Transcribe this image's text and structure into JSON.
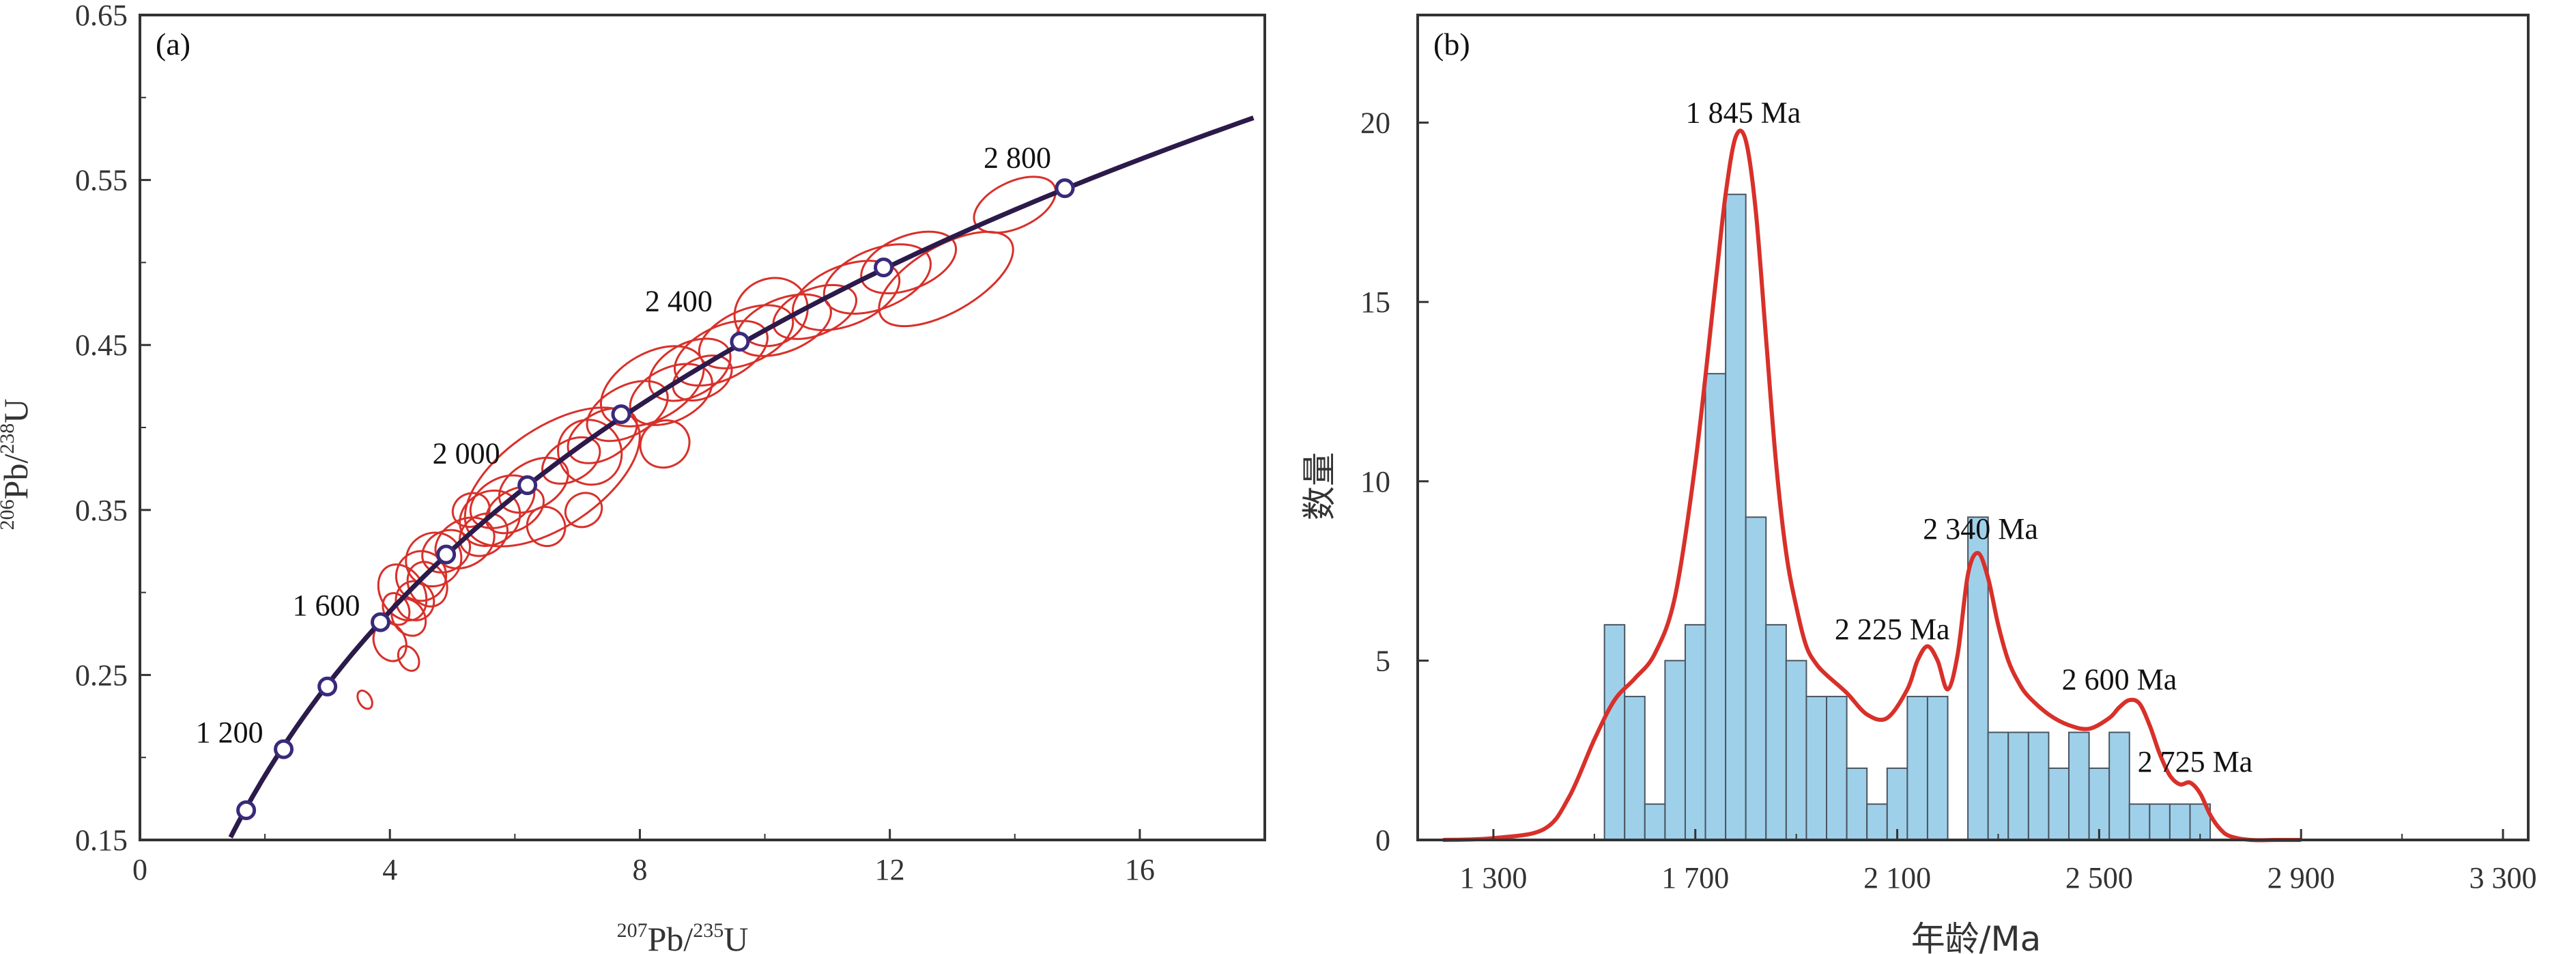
{
  "chart_data": [
    {
      "type": "scatter",
      "panel_label": "(a)",
      "xlabel_main": "Pb/",
      "xlabel_sup1": "207",
      "xlabel_sup2": "235",
      "xlabel_end": "U",
      "ylabel_main": "Pb/",
      "ylabel_sup1": "206",
      "ylabel_sup2": "238",
      "ylabel_end": "U",
      "xlim": [
        0,
        18
      ],
      "ylim": [
        0.15,
        0.65
      ],
      "x_ticks": [
        0,
        4,
        8,
        12,
        16
      ],
      "x_tick_labels": [
        "0",
        "4",
        "8",
        "12",
        "16"
      ],
      "y_ticks": [
        0.15,
        0.25,
        0.35,
        0.45,
        0.55,
        0.65
      ],
      "y_tick_labels": [
        "0.15",
        "0.25",
        "0.35",
        "0.45",
        "0.55",
        "0.65"
      ],
      "concordia_markers": [
        {
          "x": 1.7,
          "y": 0.168,
          "label": ""
        },
        {
          "x": 2.3,
          "y": 0.205,
          "label": "1 200"
        },
        {
          "x": 3.0,
          "y": 0.243,
          "label": ""
        },
        {
          "x": 3.85,
          "y": 0.282,
          "label": "1 600"
        },
        {
          "x": 4.9,
          "y": 0.323,
          "label": ""
        },
        {
          "x": 6.2,
          "y": 0.365,
          "label": "2 000"
        },
        {
          "x": 7.7,
          "y": 0.408,
          "label": ""
        },
        {
          "x": 9.6,
          "y": 0.452,
          "label": "2 400"
        },
        {
          "x": 11.9,
          "y": 0.497,
          "label": ""
        },
        {
          "x": 14.8,
          "y": 0.545,
          "label": "2 800"
        }
      ],
      "ellipses": [
        {
          "x": 4.2,
          "y": 0.3,
          "rx": 0.35,
          "ry": 0.018,
          "angle": 30
        },
        {
          "x": 4.5,
          "y": 0.31,
          "rx": 0.4,
          "ry": 0.015,
          "angle": 28
        },
        {
          "x": 4.4,
          "y": 0.295,
          "rx": 0.3,
          "ry": 0.012,
          "angle": 30
        },
        {
          "x": 4.7,
          "y": 0.32,
          "rx": 0.45,
          "ry": 0.016,
          "angle": 30
        },
        {
          "x": 4.1,
          "y": 0.29,
          "rx": 0.2,
          "ry": 0.01,
          "angle": 25
        },
        {
          "x": 4.3,
          "y": 0.285,
          "rx": 0.25,
          "ry": 0.012,
          "angle": 35
        },
        {
          "x": 4.6,
          "y": 0.305,
          "rx": 0.3,
          "ry": 0.014,
          "angle": 28
        },
        {
          "x": 4.9,
          "y": 0.325,
          "rx": 0.4,
          "ry": 0.012,
          "angle": 30
        },
        {
          "x": 5.2,
          "y": 0.33,
          "rx": 0.5,
          "ry": 0.014,
          "angle": 30
        },
        {
          "x": 5.6,
          "y": 0.345,
          "rx": 0.5,
          "ry": 0.016,
          "angle": 30
        },
        {
          "x": 5.5,
          "y": 0.335,
          "rx": 0.4,
          "ry": 0.012,
          "angle": 30
        },
        {
          "x": 5.8,
          "y": 0.355,
          "rx": 0.55,
          "ry": 0.014,
          "angle": 30
        },
        {
          "x": 6.0,
          "y": 0.35,
          "rx": 0.5,
          "ry": 0.012,
          "angle": 30
        },
        {
          "x": 6.3,
          "y": 0.365,
          "rx": 0.6,
          "ry": 0.014,
          "angle": 30
        },
        {
          "x": 6.6,
          "y": 0.37,
          "rx": 1.6,
          "ry": 0.03,
          "angle": 34
        },
        {
          "x": 6.9,
          "y": 0.38,
          "rx": 0.5,
          "ry": 0.012,
          "angle": 30
        },
        {
          "x": 7.4,
          "y": 0.395,
          "rx": 0.6,
          "ry": 0.014,
          "angle": 30
        },
        {
          "x": 7.8,
          "y": 0.41,
          "rx": 0.7,
          "ry": 0.015,
          "angle": 28
        },
        {
          "x": 8.2,
          "y": 0.425,
          "rx": 0.9,
          "ry": 0.02,
          "angle": 30
        },
        {
          "x": 8.5,
          "y": 0.42,
          "rx": 0.7,
          "ry": 0.016,
          "angle": 26
        },
        {
          "x": 8.8,
          "y": 0.435,
          "rx": 0.7,
          "ry": 0.016,
          "angle": 28
        },
        {
          "x": 9.3,
          "y": 0.445,
          "rx": 0.8,
          "ry": 0.016,
          "angle": 26
        },
        {
          "x": 9.7,
          "y": 0.455,
          "rx": 0.8,
          "ry": 0.016,
          "angle": 24
        },
        {
          "x": 10.3,
          "y": 0.462,
          "rx": 0.8,
          "ry": 0.016,
          "angle": 22
        },
        {
          "x": 10.8,
          "y": 0.47,
          "rx": 0.7,
          "ry": 0.014,
          "angle": 22
        },
        {
          "x": 11.3,
          "y": 0.48,
          "rx": 0.9,
          "ry": 0.018,
          "angle": 22
        },
        {
          "x": 11.8,
          "y": 0.49,
          "rx": 0.9,
          "ry": 0.018,
          "angle": 22
        },
        {
          "x": 12.3,
          "y": 0.5,
          "rx": 0.8,
          "ry": 0.016,
          "angle": 22
        },
        {
          "x": 12.9,
          "y": 0.49,
          "rx": 1.2,
          "ry": 0.02,
          "angle": 30
        },
        {
          "x": 14.0,
          "y": 0.535,
          "rx": 0.7,
          "ry": 0.014,
          "angle": 25
        },
        {
          "x": 4.0,
          "y": 0.27,
          "rx": 0.25,
          "ry": 0.012,
          "angle": 25
        },
        {
          "x": 4.3,
          "y": 0.26,
          "rx": 0.15,
          "ry": 0.008,
          "angle": 30
        },
        {
          "x": 3.6,
          "y": 0.235,
          "rx": 0.1,
          "ry": 0.006,
          "angle": 30
        },
        {
          "x": 7.1,
          "y": 0.35,
          "rx": 0.3,
          "ry": 0.01,
          "angle": 30
        },
        {
          "x": 7.2,
          "y": 0.385,
          "rx": 0.5,
          "ry": 0.02,
          "angle": 35
        },
        {
          "x": 8.4,
          "y": 0.39,
          "rx": 0.4,
          "ry": 0.014,
          "angle": 30
        },
        {
          "x": 5.3,
          "y": 0.35,
          "rx": 0.3,
          "ry": 0.01,
          "angle": 25
        },
        {
          "x": 10.1,
          "y": 0.47,
          "rx": 0.6,
          "ry": 0.02,
          "angle": 28
        },
        {
          "x": 6.5,
          "y": 0.34,
          "rx": 0.3,
          "ry": 0.012,
          "angle": 30
        },
        {
          "x": 9.0,
          "y": 0.43,
          "rx": 0.5,
          "ry": 0.012,
          "angle": 26
        }
      ]
    },
    {
      "type": "bar",
      "panel_label": "(b)",
      "xlabel": "年龄/Ma",
      "ylabel": "数量",
      "xlim": [
        1150,
        3350
      ],
      "ylim": [
        0,
        23
      ],
      "x_ticks": [
        1300,
        1700,
        2100,
        2500,
        2900,
        3300
      ],
      "x_tick_labels": [
        "1 300",
        "1 700",
        "2 100",
        "2 500",
        "2 900",
        "3 300"
      ],
      "y_ticks": [
        0,
        5,
        10,
        15,
        20
      ],
      "y_tick_labels": [
        "0",
        "5",
        "10",
        "15",
        "20"
      ],
      "bin_width": 40,
      "bins": [
        {
          "start": 1520,
          "count": 6
        },
        {
          "start": 1560,
          "count": 4
        },
        {
          "start": 1600,
          "count": 1
        },
        {
          "start": 1640,
          "count": 5
        },
        {
          "start": 1680,
          "count": 6
        },
        {
          "start": 1720,
          "count": 13
        },
        {
          "start": 1760,
          "count": 18
        },
        {
          "start": 1800,
          "count": 9
        },
        {
          "start": 1840,
          "count": 6
        },
        {
          "start": 1880,
          "count": 5
        },
        {
          "start": 1920,
          "count": 4
        },
        {
          "start": 1960,
          "count": 4
        },
        {
          "start": 2000,
          "count": 2
        },
        {
          "start": 2040,
          "count": 1
        },
        {
          "start": 2080,
          "count": 2
        },
        {
          "start": 2120,
          "count": 4
        },
        {
          "start": 2160,
          "count": 4
        },
        {
          "start": 2240,
          "count": 9
        },
        {
          "start": 2280,
          "count": 3
        },
        {
          "start": 2320,
          "count": 3
        },
        {
          "start": 2360,
          "count": 3
        },
        {
          "start": 2400,
          "count": 2
        },
        {
          "start": 2440,
          "count": 3
        },
        {
          "start": 2480,
          "count": 2
        },
        {
          "start": 2520,
          "count": 3
        },
        {
          "start": 2560,
          "count": 1
        },
        {
          "start": 2600,
          "count": 1
        },
        {
          "start": 2640,
          "count": 1
        },
        {
          "start": 2680,
          "count": 1
        }
      ],
      "kde": {
        "x": [
          1200,
          1300,
          1400,
          1450,
          1500,
          1540,
          1580,
          1620,
          1660,
          1700,
          1740,
          1760,
          1780,
          1800,
          1820,
          1840,
          1860,
          1880,
          1900,
          1920,
          1940,
          1960,
          2000,
          2040,
          2080,
          2120,
          2140,
          2160,
          2180,
          2200,
          2220,
          2240,
          2260,
          2280,
          2300,
          2320,
          2340,
          2360,
          2400,
          2440,
          2480,
          2520,
          2540,
          2560,
          2580,
          2600,
          2620,
          2640,
          2660,
          2680,
          2700,
          2720,
          2740,
          2760,
          2800,
          2850,
          2900
        ],
        "y": [
          0,
          0.05,
          0.3,
          1.2,
          2.8,
          3.9,
          4.5,
          5.2,
          6.8,
          10.5,
          15.5,
          18,
          19.6,
          19.5,
          17.5,
          14,
          10.5,
          8,
          6.5,
          5.4,
          4.9,
          4.6,
          4.1,
          3.5,
          3.4,
          4.2,
          5,
          5.4,
          5,
          4.2,
          5.2,
          7.4,
          8,
          7.3,
          6,
          5,
          4.4,
          4,
          3.5,
          3.2,
          3.1,
          3.4,
          3.7,
          3.9,
          3.8,
          3.2,
          2.4,
          1.8,
          1.55,
          1.6,
          1.3,
          0.7,
          0.3,
          0.1,
          0,
          0,
          0
        ]
      },
      "annotations": [
        {
          "label": "1 845 Ma",
          "x": 1795,
          "y": 20.0
        },
        {
          "label": "2 225 Ma",
          "x": 2090,
          "y": 5.6
        },
        {
          "label": "2 340 Ma",
          "x": 2265,
          "y": 8.4
        },
        {
          "label": "2 600 Ma",
          "x": 2540,
          "y": 4.2
        },
        {
          "label": "2 725 Ma",
          "x": 2690,
          "y": 1.9
        }
      ]
    }
  ]
}
